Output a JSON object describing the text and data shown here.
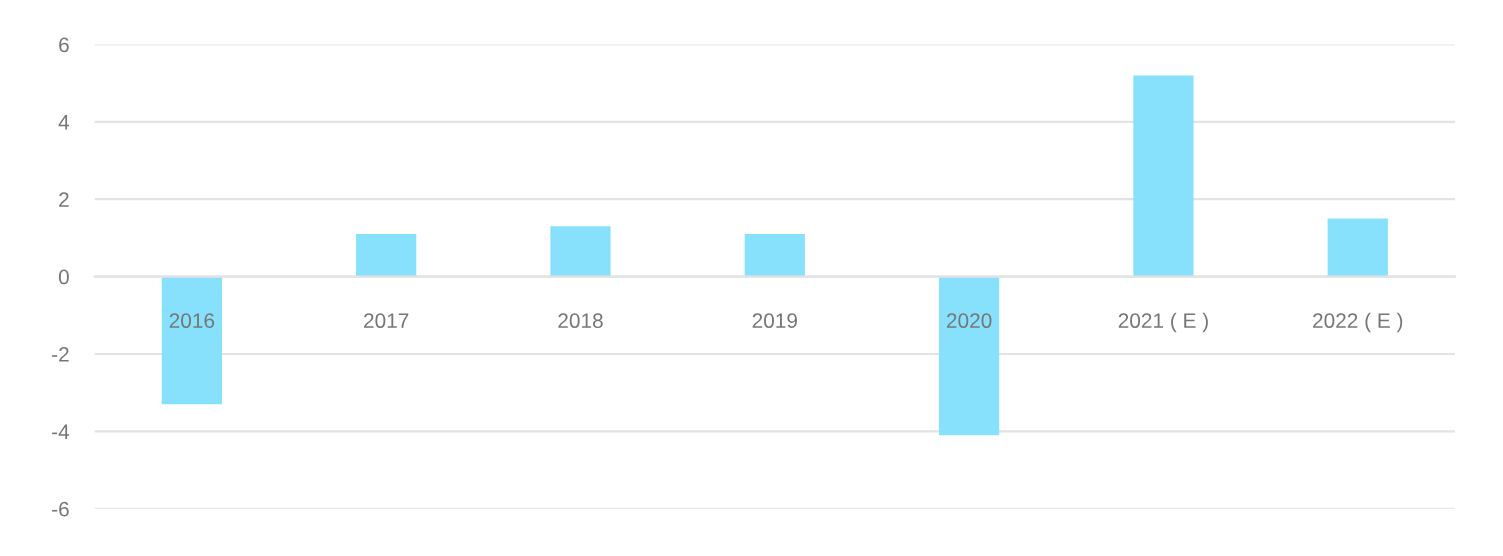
{
  "chart_data": {
    "type": "bar",
    "categories": [
      "2016",
      "2017",
      "2018",
      "2019",
      "2020",
      "2021 ( E )",
      "2022 ( E )"
    ],
    "values": [
      -3.3,
      1.1,
      1.3,
      1.1,
      -4.1,
      5.2,
      1.5
    ],
    "color": "#87e1fc",
    "ylim": [
      -6,
      6
    ],
    "yticks": [
      -6,
      -4,
      -2,
      0,
      2,
      4,
      6
    ],
    "grid": "y",
    "legend": false
  }
}
